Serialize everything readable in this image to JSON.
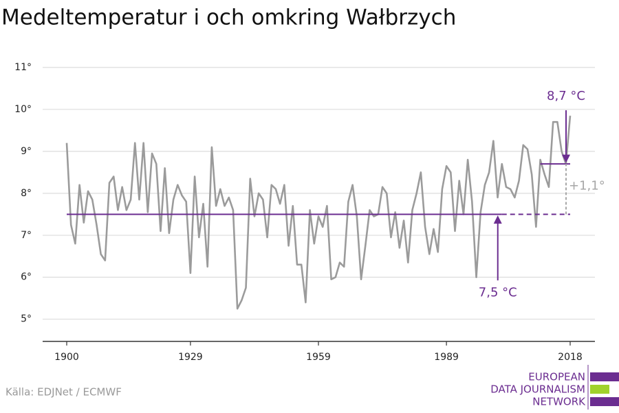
{
  "chart_data": {
    "type": "line",
    "title": "Medeltemperatur i och omkring Wałbrzych",
    "source": "Källa: EDJNet / ECMWF",
    "logo": [
      "EUROPEAN",
      "DATA JOURNALISM",
      "NETWORK"
    ],
    "x": [
      1900,
      1901,
      1902,
      1903,
      1904,
      1905,
      1906,
      1907,
      1908,
      1909,
      1910,
      1911,
      1912,
      1913,
      1914,
      1915,
      1916,
      1917,
      1918,
      1919,
      1920,
      1921,
      1922,
      1923,
      1924,
      1925,
      1926,
      1927,
      1928,
      1929,
      1930,
      1931,
      1932,
      1933,
      1934,
      1935,
      1936,
      1937,
      1938,
      1939,
      1940,
      1941,
      1942,
      1943,
      1944,
      1945,
      1946,
      1947,
      1948,
      1949,
      1950,
      1951,
      1952,
      1953,
      1954,
      1955,
      1956,
      1957,
      1958,
      1959,
      1960,
      1961,
      1962,
      1963,
      1964,
      1965,
      1966,
      1967,
      1968,
      1969,
      1970,
      1971,
      1972,
      1973,
      1974,
      1975,
      1976,
      1977,
      1978,
      1979,
      1980,
      1981,
      1982,
      1983,
      1984,
      1985,
      1986,
      1987,
      1988,
      1989,
      1990,
      1991,
      1992,
      1993,
      1994,
      1995,
      1996,
      1997,
      1998,
      1999,
      2000,
      2001,
      2002,
      2003,
      2004,
      2005,
      2006,
      2007,
      2008,
      2009,
      2010,
      2011,
      2012,
      2013,
      2014,
      2015,
      2016,
      2017,
      2018
    ],
    "series": [
      {
        "name": "Medeltemperatur",
        "color": "#9b9b9b",
        "values": [
          9.2,
          7.25,
          6.8,
          8.2,
          7.3,
          8.05,
          7.85,
          7.25,
          6.55,
          6.4,
          8.25,
          8.4,
          7.6,
          8.15,
          7.6,
          7.85,
          9.2,
          7.85,
          9.2,
          7.55,
          8.95,
          8.7,
          7.1,
          8.6,
          7.05,
          7.85,
          8.2,
          7.95,
          7.8,
          6.1,
          8.4,
          6.95,
          7.75,
          6.25,
          9.1,
          7.7,
          8.1,
          7.7,
          7.9,
          7.6,
          5.25,
          5.45,
          5.75,
          8.35,
          7.45,
          8.0,
          7.85,
          6.95,
          8.2,
          8.1,
          7.75,
          8.2,
          6.75,
          7.7,
          6.3,
          6.3,
          5.4,
          7.6,
          6.8,
          7.45,
          7.2,
          7.7,
          5.95,
          6.0,
          6.35,
          6.25,
          7.8,
          8.2,
          7.45,
          5.95,
          6.75,
          7.6,
          7.45,
          7.5,
          8.15,
          8.0,
          6.95,
          7.55,
          6.7,
          7.35,
          6.35,
          7.6,
          8.0,
          8.5,
          7.2,
          6.55,
          7.15,
          6.6,
          8.1,
          8.65,
          8.5,
          7.1,
          8.3,
          7.5,
          8.8,
          7.8,
          6.0,
          7.55,
          8.2,
          8.5,
          9.25,
          7.9,
          8.7,
          8.15,
          8.1,
          7.9,
          8.3,
          9.15,
          9.05,
          8.45,
          7.2,
          8.8,
          8.45,
          8.15,
          9.7,
          9.7,
          9.0,
          8.7,
          9.85
        ]
      }
    ],
    "annotations": [
      {
        "value": 7.5,
        "label": "7,5 °C",
        "from": 1900,
        "solid_to": 2002,
        "to": 2018,
        "color": "#6b2d90"
      },
      {
        "value": 8.7,
        "label": "8,7 °C",
        "from": 2011,
        "to": 2018,
        "color": "#6b2d90"
      }
    ],
    "difference": {
      "label": "+1,1°",
      "x": 2018,
      "color": "#a6a6a6"
    },
    "xlim": [
      1900,
      2018
    ],
    "xticks": [
      1900,
      1929,
      1959,
      1989,
      2018
    ],
    "ylim": [
      4.47,
      11.4
    ],
    "yticks": [
      {
        "value": 5,
        "label": "5°"
      },
      {
        "value": 6,
        "label": "6°"
      },
      {
        "value": 7,
        "label": "7°"
      },
      {
        "value": 8,
        "label": "8°"
      },
      {
        "value": 9,
        "label": "9°"
      },
      {
        "value": 10,
        "label": "10°"
      },
      {
        "value": 11,
        "label": "11°"
      }
    ],
    "grid": true
  }
}
